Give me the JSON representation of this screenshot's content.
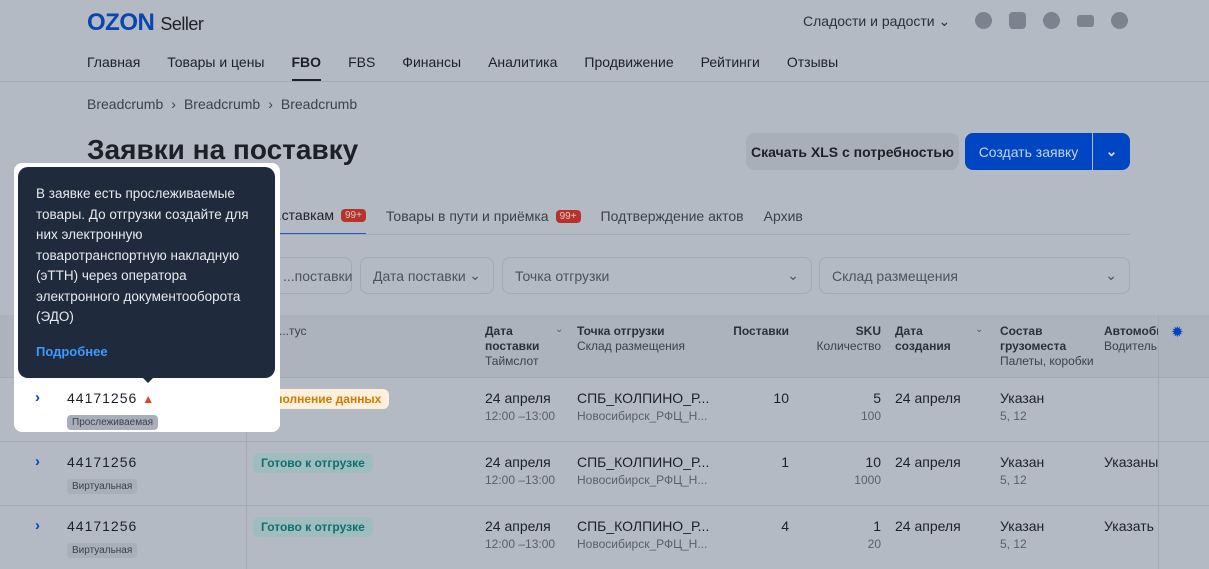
{
  "header": {
    "logo": "OZON",
    "logo_suffix": "Seller",
    "store": "Сладости и радости",
    "icons": [
      "user-icon",
      "chat-icon",
      "help-icon",
      "education-icon",
      "megaphone-icon"
    ]
  },
  "nav": [
    "Главная",
    "Товары и цены",
    "FBO",
    "FBS",
    "Финансы",
    "Аналитика",
    "Продвижение",
    "Рейтинги",
    "Отзывы"
  ],
  "nav_active": "FBO",
  "breadcrumb": [
    "Breadcrumb",
    "Breadcrumb",
    "Breadcrumb"
  ],
  "page": {
    "title": "Заявки на поставку",
    "download_label": "Скачать XLS с потребностью",
    "create_label": "Создать заявку"
  },
  "tabs": [
    {
      "label": "...ставкам",
      "badge": "99+"
    },
    {
      "label": "Товары в пути и приёмка",
      "badge": "99+"
    },
    {
      "label": "Подтверждение актов",
      "badge": ""
    },
    {
      "label": "Архив",
      "badge": ""
    }
  ],
  "filters": [
    "...поставки",
    "Дата поставки",
    "Точка отгрузки",
    "Склад размещения"
  ],
  "columns": {
    "status": "...тус",
    "date": [
      "Дата",
      "поставки",
      "Таймслот"
    ],
    "point": [
      "Точка отгрузки",
      "Склад размещения"
    ],
    "supplies": "Поставки",
    "sku": [
      "SKU",
      "Количество"
    ],
    "created": [
      "Дата",
      "создания"
    ],
    "cargo": [
      "Состав",
      "грузоместа",
      "Палеты, коробки"
    ],
    "auto": [
      "Автомоби",
      "Водитель"
    ]
  },
  "rows": [
    {
      "id": "44171256",
      "tag": "Прослеживаемая",
      "warning": true,
      "status": "Заполнение данных",
      "status_type": "fill",
      "date": "24 апреля",
      "slot": "12:00 –13:00",
      "point": "СПБ_КОЛПИНО_Р...",
      "warehouse": "Новосибирск_РФЦ_Н...",
      "supplies": "10",
      "sku": "5",
      "qty": "100",
      "created": "24 апреля",
      "cargo": "Указан",
      "cargo_sub": "5, 12",
      "auto": ""
    },
    {
      "id": "44171256",
      "tag": "Виртуальная",
      "warning": false,
      "status": "Готово к отгрузке",
      "status_type": "ready",
      "date": "24 апреля",
      "slot": "12:00 –13:00",
      "point": "СПБ_КОЛПИНО_Р...",
      "warehouse": "Новосибирск_РФЦ_Н...",
      "supplies": "1",
      "sku": "10",
      "qty": "1000",
      "created": "24 апреля",
      "cargo": "Указан",
      "cargo_sub": "5, 12",
      "auto": "Указаны"
    },
    {
      "id": "44171256",
      "tag": "Виртуальная",
      "warning": false,
      "status": "Готово к отгрузке",
      "status_type": "ready",
      "date": "24 апреля",
      "slot": "12:00 –13:00",
      "point": "СПБ_КОЛПИНО_Р...",
      "warehouse": "Новосибирск_РФЦ_Н...",
      "supplies": "4",
      "sku": "1",
      "qty": "20",
      "created": "24 апреля",
      "cargo": "Указан",
      "cargo_sub": "5, 12",
      "auto": "Указать"
    }
  ],
  "tooltip": {
    "text": "В заявке есть прослеживаемые товары. До отгрузки создайте для них электронную товаротранспортную накладную (эТТН) через оператора электронного документооборота (ЭДО)",
    "link": "Подробнее"
  },
  "colors": {
    "accent": "#0046c2",
    "tooltip_bg": "#1f2a3c",
    "badge": "#b5332b"
  }
}
